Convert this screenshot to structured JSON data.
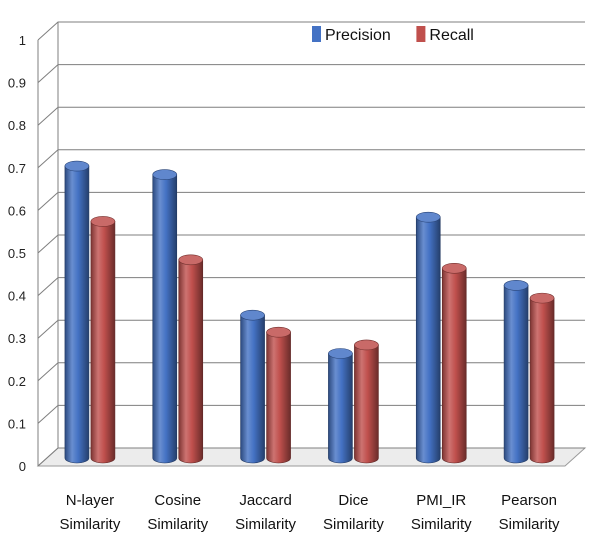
{
  "chart_data": {
    "type": "bar",
    "categories": [
      [
        "N-layer",
        "Similarity"
      ],
      [
        "Cosine",
        "Similarity"
      ],
      [
        "Jaccard",
        "Similarity"
      ],
      [
        "Dice",
        "Similarity"
      ],
      [
        "PMI_IR",
        "Similarity"
      ],
      [
        "Pearson",
        "Similarity"
      ]
    ],
    "series": [
      {
        "name": "Precision",
        "color": "#4472C4",
        "values": [
          0.69,
          0.67,
          0.34,
          0.25,
          0.57,
          0.41
        ]
      },
      {
        "name": "Recall",
        "color": "#C0504D",
        "values": [
          0.56,
          0.47,
          0.3,
          0.27,
          0.45,
          0.38
        ]
      }
    ],
    "ylim": [
      0,
      1
    ],
    "yticks": [
      "0",
      "0.1",
      "0.2",
      "0.3",
      "0.4",
      "0.5",
      "0.6",
      "0.7",
      "0.8",
      "0.9",
      "1"
    ],
    "grid": true,
    "legend_position": "top-right",
    "style": "3d-cylinder"
  }
}
